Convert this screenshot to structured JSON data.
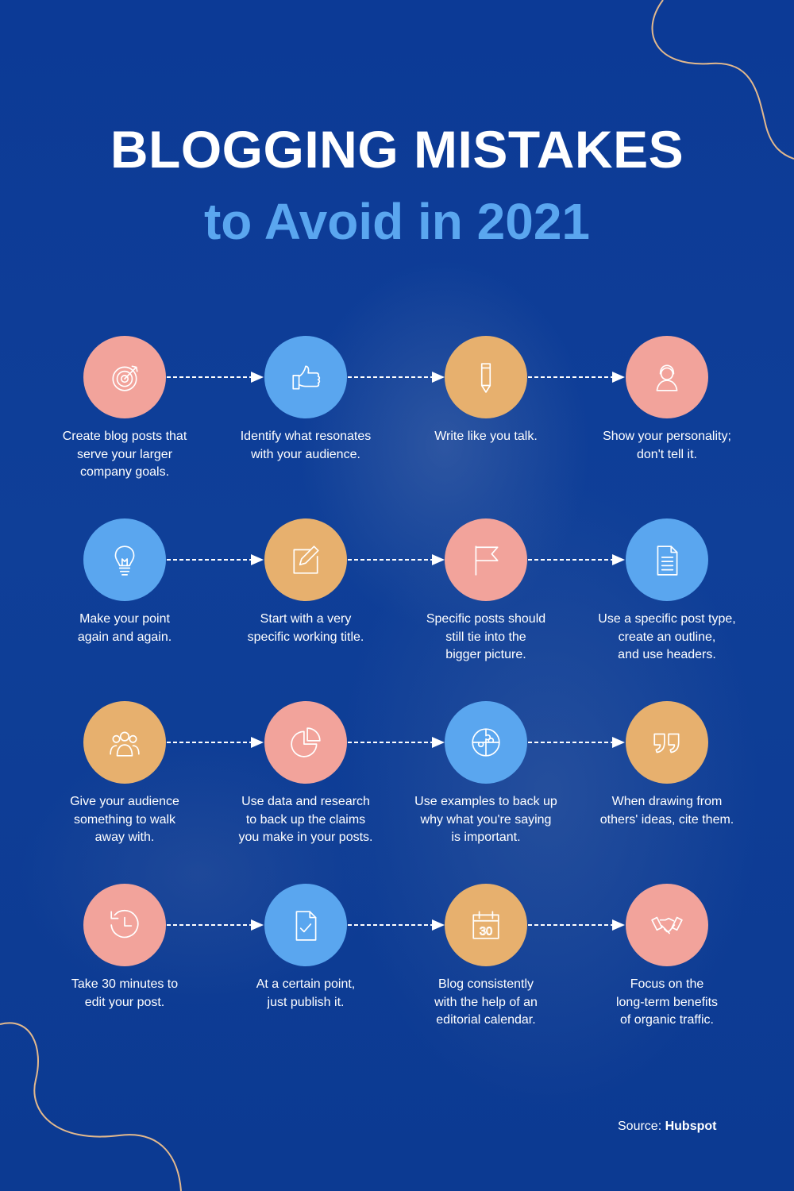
{
  "title": "BLOGGING MISTAKES",
  "subtitle": "to Avoid in 2021",
  "colors": {
    "background": "#0d3c95",
    "subtitle": "#5aa6ef",
    "pink": "#f2a39b",
    "blue": "#5aa6ef",
    "orange": "#e7b06e",
    "curve": "#e3b98d"
  },
  "steps": [
    {
      "icon": "target-icon",
      "color": "pink",
      "text": "Create blog posts that\nserve your larger\ncompany goals."
    },
    {
      "icon": "thumbs-up-icon",
      "color": "blue",
      "text": "Identify what resonates\nwith your audience."
    },
    {
      "icon": "pencil-icon",
      "color": "orange",
      "text": "Write like you talk."
    },
    {
      "icon": "person-icon",
      "color": "pink",
      "text": "Show your personality;\ndon't tell it."
    },
    {
      "icon": "lightbulb-icon",
      "color": "blue",
      "text": "Make your point\nagain and again."
    },
    {
      "icon": "edit-icon",
      "color": "orange",
      "text": "Start with a very\nspecific working title."
    },
    {
      "icon": "flag-icon",
      "color": "pink",
      "text": "Specific posts should\nstill tie into the\nbigger picture."
    },
    {
      "icon": "document-icon",
      "color": "blue",
      "text": "Use a specific post type,\ncreate an outline,\nand use headers."
    },
    {
      "icon": "audience-icon",
      "color": "orange",
      "text": "Give your audience\nsomething to walk\naway with."
    },
    {
      "icon": "pie-chart-icon",
      "color": "pink",
      "text": "Use data and research\nto back up the claims\nyou make in your posts."
    },
    {
      "icon": "puzzle-icon",
      "color": "blue",
      "text": "Use examples to back up\nwhy what you're saying\nis important."
    },
    {
      "icon": "quote-icon",
      "color": "orange",
      "text": "When drawing from\nothers' ideas, cite them."
    },
    {
      "icon": "clock-icon",
      "color": "pink",
      "text": "Take 30 minutes to\nedit your post."
    },
    {
      "icon": "file-check-icon",
      "color": "blue",
      "text": "At a certain point,\njust publish it."
    },
    {
      "icon": "calendar-icon",
      "color": "orange",
      "text": "Blog consistently\nwith the help of an\neditorial calendar."
    },
    {
      "icon": "handshake-icon",
      "color": "pink",
      "text": "Focus on the\nlong-term benefits\nof organic traffic."
    }
  ],
  "source": {
    "label": "Source:",
    "name": "Hubspot"
  }
}
